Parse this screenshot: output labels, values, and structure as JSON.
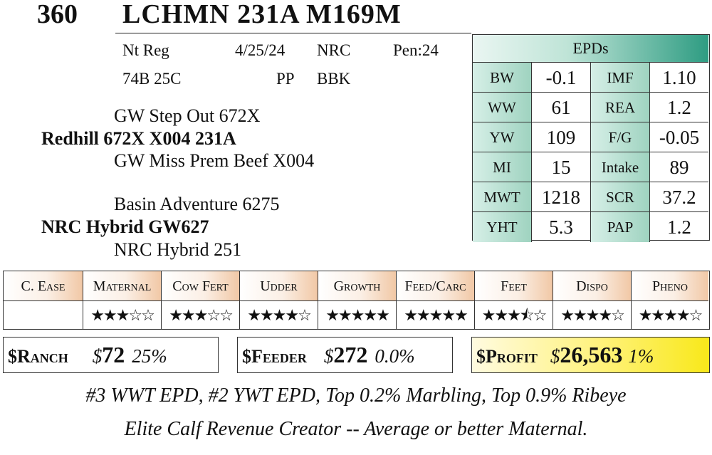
{
  "header": {
    "lot": "360",
    "name": "LCHMN 231A M169M"
  },
  "info": {
    "reg": "Nt Reg",
    "date": "4/25/24",
    "breeder": "NRC",
    "pen": "Pen:24",
    "tattoo": "74B 25C",
    "polled": "PP",
    "color": "BBK"
  },
  "pedigree": {
    "sire_sire": "GW Step Out 672X",
    "sire": "Redhill 672X X004 231A",
    "sire_dam": "GW Miss Prem Beef X004",
    "dam_sire": "Basin Adventure 6275",
    "dam": "NRC Hybrid GW627",
    "dam_dam": "NRC Hybrid 251"
  },
  "epds": {
    "title": "EPDs",
    "rows": [
      {
        "l1": "BW",
        "v1": "-0.1",
        "l2": "IMF",
        "v2": "1.10"
      },
      {
        "l1": "WW",
        "v1": "61",
        "l2": "REA",
        "v2": "1.2"
      },
      {
        "l1": "YW",
        "v1": "109",
        "l2": "F/G",
        "v2": "-0.05"
      },
      {
        "l1": "MI",
        "v1": "15",
        "l2": "Intake",
        "v2": "89"
      },
      {
        "l1": "MWT",
        "v1": "1218",
        "l2": "SCR",
        "v2": "37.2"
      },
      {
        "l1": "YHT",
        "v1": "5.3",
        "l2": "PAP",
        "v2": "1.2"
      }
    ]
  },
  "ratings": [
    {
      "label": "C. Ease",
      "stars": ""
    },
    {
      "label": "Maternal",
      "stars": "★★★☆☆"
    },
    {
      "label": "Cow Fert",
      "stars": "★★★☆☆"
    },
    {
      "label": "Udder",
      "stars": "★★★★☆"
    },
    {
      "label": "Growth",
      "stars": "★★★★★"
    },
    {
      "label": "Feed/Carc",
      "stars": "★★★★★"
    },
    {
      "label": "Feet",
      "stars": "★★★⯪☆"
    },
    {
      "label": "Dispo",
      "stars": "★★★★☆"
    },
    {
      "label": "Pheno",
      "stars": "★★★★☆"
    }
  ],
  "indexes": {
    "ranch": {
      "label": "$Ranch",
      "currency": "$",
      "value": "72",
      "pct": "25%"
    },
    "feeder": {
      "label": "$Feeder",
      "currency": "$",
      "value": "272",
      "pct": "0.0%"
    },
    "profit": {
      "label": "$Profit",
      "currency": "$",
      "value": "26,563",
      "pct": "1%"
    }
  },
  "notes": {
    "line1": "#3 WWT EPD, #2 YWT EPD, Top 0.2% Marbling, Top 0.9% Ribeye",
    "line2": "Elite Calf Revenue Creator -- Average or better Maternal."
  },
  "colors": {
    "epd_accent": "#2e9c82",
    "rating_accent": "#f1c8a6",
    "profit_accent": "#f8e81a"
  }
}
